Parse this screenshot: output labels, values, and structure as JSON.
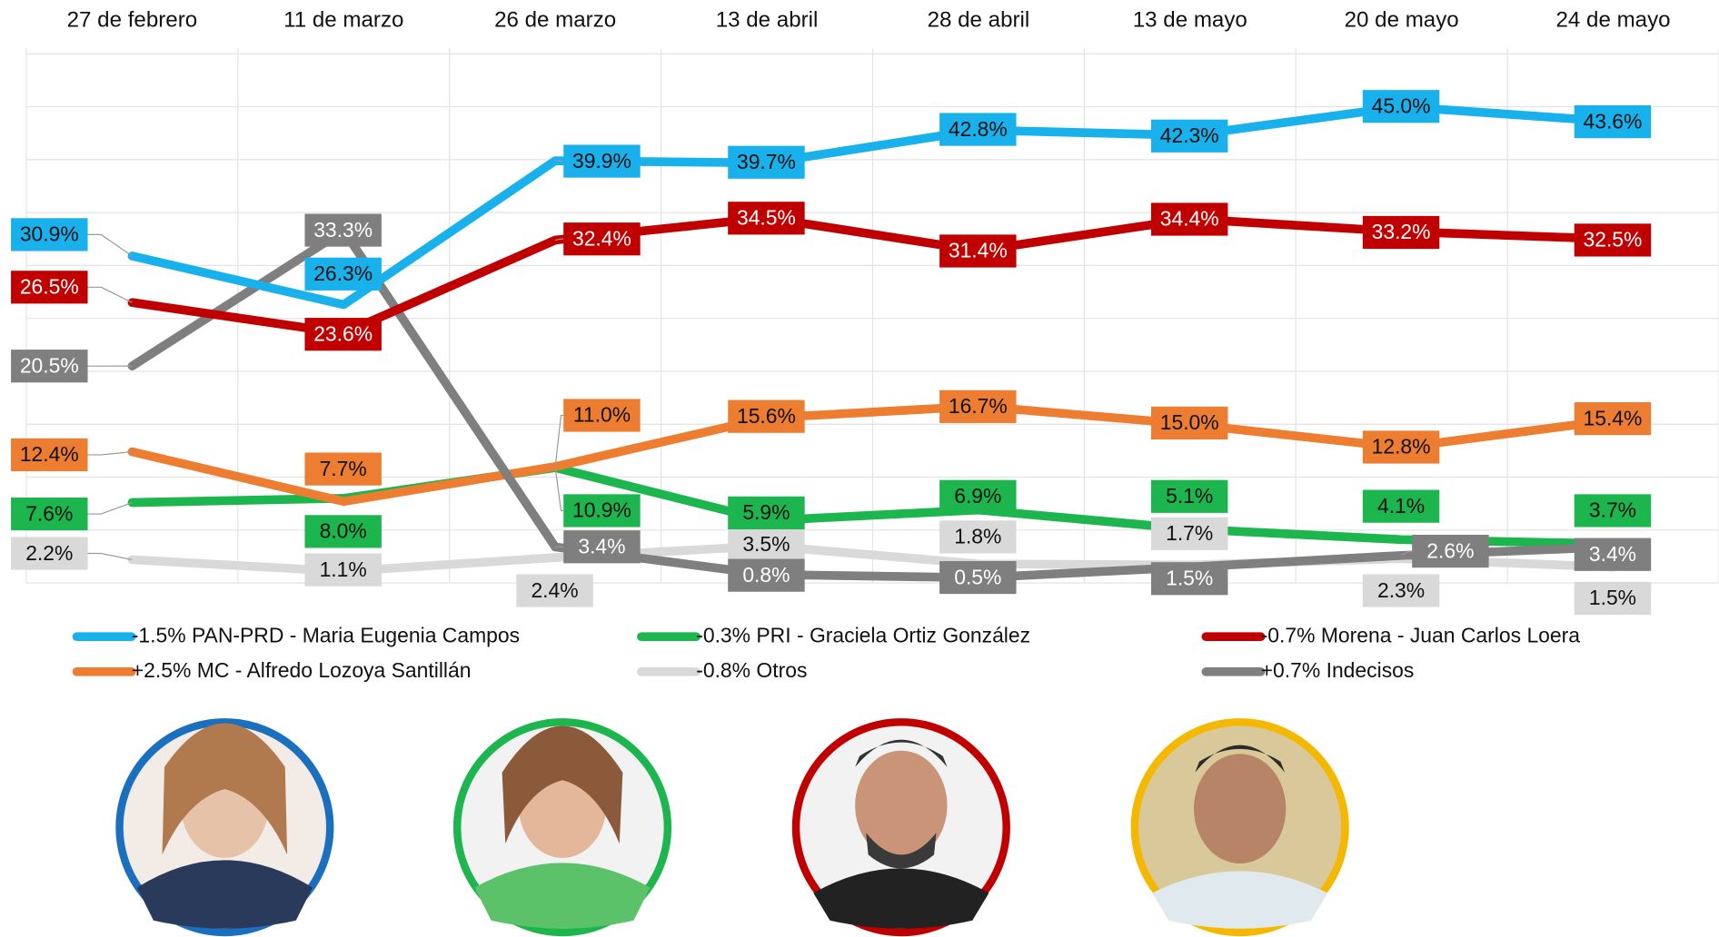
{
  "chart_data": {
    "type": "line",
    "categories": [
      "27 de febrero",
      "11 de marzo",
      "26 de marzo",
      "13 de abril",
      "28 de abril",
      "13 de mayo",
      "20 de mayo",
      "24 de mayo"
    ],
    "ylim": [
      0,
      50
    ],
    "yticks": [
      0,
      5,
      10,
      15,
      20,
      25,
      30,
      35,
      40,
      45,
      50
    ],
    "grid": true,
    "series": [
      {
        "name": "-1.5% PAN-PRD - Maria Eugenia Campos",
        "color": "#19b1ec",
        "values": [
          30.9,
          26.3,
          39.9,
          39.7,
          42.8,
          42.3,
          45.0,
          43.6
        ],
        "value_labels": [
          "30.9%",
          "26.3%",
          "39.9%",
          "39.7%",
          "42.8%",
          "42.3%",
          "45.0%",
          "43.6%"
        ]
      },
      {
        "name": "-0.3% PRI - Graciela Ortiz González",
        "color": "#1cb54e",
        "values": [
          7.6,
          8.0,
          10.9,
          5.9,
          6.9,
          5.1,
          4.1,
          3.7
        ],
        "value_labels": [
          "7.6%",
          "8.0%",
          "10.9%",
          "5.9%",
          "6.9%",
          "5.1%",
          "4.1%",
          "3.7%"
        ]
      },
      {
        "name": "-0.7% Morena - Juan Carlos Loera",
        "color": "#c00000",
        "values": [
          26.5,
          23.6,
          32.4,
          34.5,
          31.4,
          34.4,
          33.2,
          32.5
        ],
        "value_labels": [
          "26.5%",
          "23.6%",
          "32.4%",
          "34.5%",
          "31.4%",
          "34.4%",
          "33.2%",
          "32.5%"
        ]
      },
      {
        "name": "+2.5% MC - Alfredo Lozoya Santillán",
        "color": "#ed7d31",
        "values": [
          12.4,
          7.7,
          11.0,
          15.6,
          16.7,
          15.0,
          12.8,
          15.4
        ],
        "value_labels": [
          "12.4%",
          "7.7%",
          "11.0%",
          "15.6%",
          "16.7%",
          "15.0%",
          "12.8%",
          "15.4%"
        ]
      },
      {
        "name": "-0.8% Otros",
        "color": "#d9d9d9",
        "values": [
          2.2,
          1.1,
          2.4,
          3.5,
          1.8,
          1.7,
          2.3,
          1.5
        ],
        "value_labels": [
          "2.2%",
          "1.1%",
          "2.4%",
          "3.5%",
          "1.8%",
          "1.7%",
          "2.3%",
          "1.5%"
        ]
      },
      {
        "name": "+0.7% Indecisos",
        "color": "#7f7f7f",
        "values": [
          20.5,
          33.3,
          3.4,
          0.8,
          0.5,
          1.5,
          2.6,
          3.4
        ],
        "value_labels": [
          "20.5%",
          "33.3%",
          "3.4%",
          "0.8%",
          "0.5%",
          "1.5%",
          "2.6%",
          "3.4%"
        ]
      }
    ]
  }
}
